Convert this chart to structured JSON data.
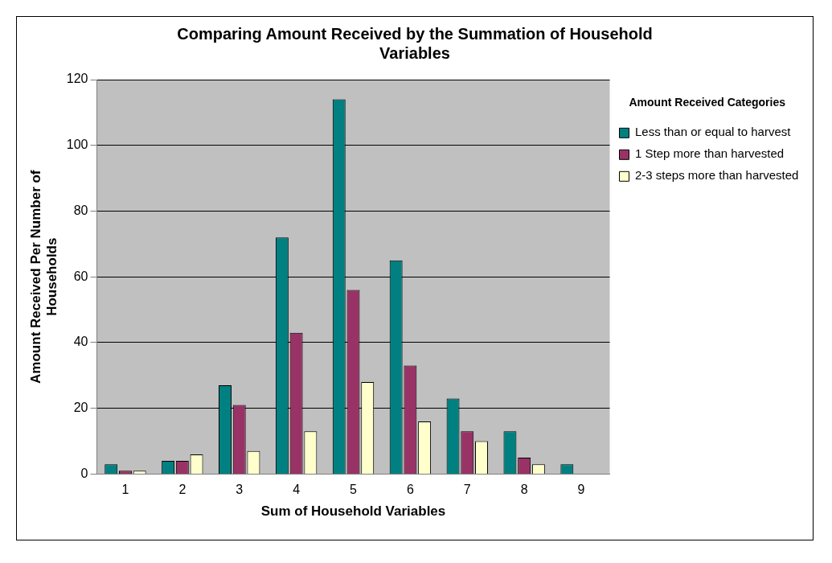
{
  "chart_data": {
    "type": "bar",
    "title": "Comparing Amount Received by the Summation of Household Variables",
    "xlabel": "Sum of Household Variables",
    "ylabel": "Amount Received Per Number of Households",
    "legend_title": "Amount Received Categories",
    "categories": [
      "1",
      "2",
      "3",
      "4",
      "5",
      "6",
      "7",
      "8",
      "9"
    ],
    "series": [
      {
        "name": "Less than or equal to harvest",
        "color": "#008080",
        "values": [
          3,
          4,
          27,
          72,
          114,
          65,
          23,
          13,
          3
        ]
      },
      {
        "name": "1 Step more than harvested",
        "color": "#993366",
        "values": [
          1,
          4,
          21,
          43,
          56,
          33,
          13,
          5,
          0
        ]
      },
      {
        "name": "2-3 steps more than harvested",
        "color": "#ffffcc",
        "values": [
          1,
          6,
          7,
          13,
          28,
          16,
          10,
          3,
          0
        ]
      }
    ],
    "ylim": [
      0,
      120
    ],
    "yticks": [
      0,
      20,
      40,
      60,
      80,
      100,
      120
    ],
    "grid": "y",
    "legend": "right"
  }
}
